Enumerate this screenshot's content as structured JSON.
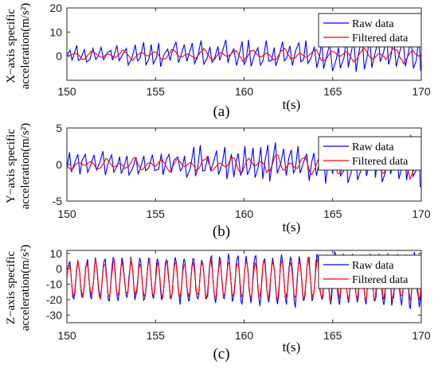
{
  "chart_data": [
    {
      "type": "line",
      "panel_label": "(a)",
      "xlabel": "t(s)",
      "ylabel_line1": "X−axis specific",
      "ylabel_line2": "acceleration(m/s²)",
      "xlim": [
        150,
        170
      ],
      "ylim": [
        -10,
        20
      ],
      "xticks": [
        150,
        155,
        160,
        165,
        170
      ],
      "yticks": [
        0,
        10,
        20
      ],
      "legend_position": "top-right",
      "series": [
        {
          "name": "Raw data",
          "color": "#0000ff",
          "mode": "spikes",
          "center": 0,
          "amp_start": 4,
          "amp_end": 8,
          "period": 0.35
        },
        {
          "name": "Filtered data",
          "color": "#ff0000",
          "mode": "smooth",
          "center": 0.5,
          "amp_start": 1.5,
          "amp_end": 3,
          "period": 0.9
        }
      ]
    },
    {
      "type": "line",
      "panel_label": "(b)",
      "xlabel": "t(s)",
      "ylabel_line1": "Y−axis specific",
      "ylabel_line2": "acceleration(m/s²)",
      "xlim": [
        150,
        170
      ],
      "ylim": [
        -5,
        5
      ],
      "xticks": [
        150,
        155,
        160,
        165,
        170
      ],
      "yticks": [
        -5,
        0,
        5
      ],
      "legend_position": "top-right",
      "series": [
        {
          "name": "Raw data",
          "color": "#0000ff",
          "mode": "spikes",
          "center": 0,
          "amp_start": 1.5,
          "amp_end": 3.5,
          "period": 0.35
        },
        {
          "name": "Filtered data",
          "color": "#ff0000",
          "mode": "smooth",
          "center": 0,
          "amp_start": 0.6,
          "amp_end": 1.5,
          "period": 0.8
        }
      ]
    },
    {
      "type": "line",
      "panel_label": "(c)",
      "xlabel": "t(s)",
      "ylabel_line1": "Z−axis specific",
      "ylabel_line2": "acceleration(m/s²)",
      "xlim": [
        150,
        170
      ],
      "ylim": [
        -35,
        12
      ],
      "xticks": [
        150,
        155,
        160,
        165,
        170
      ],
      "yticks": [
        10,
        0,
        -10,
        -20,
        -30
      ],
      "legend_position": "top-right",
      "series": [
        {
          "name": "Raw data",
          "color": "#0000ff",
          "mode": "osc",
          "center": -7,
          "amp_start": 12,
          "amp_end": 17,
          "period": 0.5
        },
        {
          "name": "Filtered data",
          "color": "#ff0000",
          "mode": "osc",
          "center": -7,
          "amp_start": 11,
          "amp_end": 13,
          "period": 0.5
        }
      ]
    }
  ]
}
